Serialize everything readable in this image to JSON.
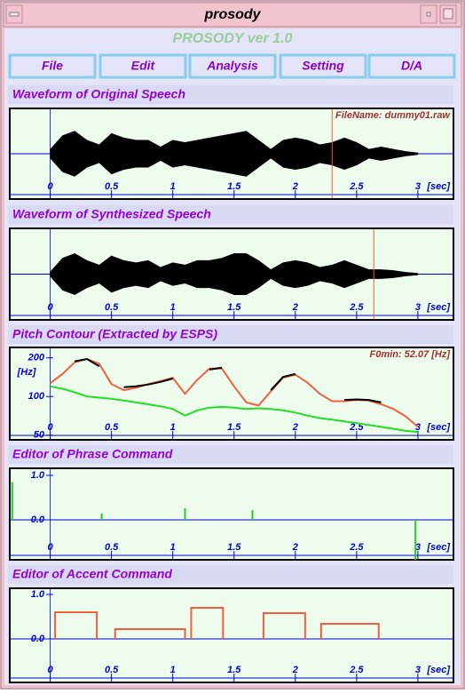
{
  "window": {
    "title": "prosody"
  },
  "app_title": "PROSODY ver 1.0",
  "menu": [
    "File",
    "Edit",
    "Analysis",
    "Setting",
    "D/A"
  ],
  "chart_data": [
    {
      "type": "waveform",
      "title": "Waveform of Original Speech",
      "file_label": "FileName: dummy01.raw",
      "xlim": [
        -0.33,
        3.29
      ],
      "xticks": [
        0,
        0.5,
        1,
        1.5,
        2,
        2.5,
        3
      ],
      "x_unit": "[sec]",
      "ylim": [
        -1,
        1
      ],
      "x": [
        0,
        0.1,
        0.2,
        0.3,
        0.4,
        0.5,
        0.6,
        0.7,
        0.8,
        0.9,
        1,
        1.1,
        1.2,
        1.3,
        1.4,
        1.5,
        1.6,
        1.7,
        1.8,
        1.9,
        2,
        2.1,
        2.2,
        2.3,
        2.4,
        2.5,
        2.6,
        2.7,
        2.8,
        2.9,
        3
      ],
      "values": [
        0.1,
        0.4,
        0.5,
        0.3,
        0.2,
        0.45,
        0.35,
        0.3,
        0.3,
        0.15,
        0.3,
        0.25,
        0.3,
        0.35,
        0.4,
        0.45,
        0.5,
        0.3,
        0.1,
        0.3,
        0.35,
        0.3,
        0.2,
        0.25,
        0.35,
        0.25,
        0.1,
        0.15,
        0.1,
        0.05,
        0.02
      ],
      "color": "#000000",
      "cursor": 2.3,
      "cursor_color": "#e06040"
    },
    {
      "type": "waveform",
      "title": "Waveform of Synthesized Speech",
      "xlim": [
        -0.33,
        3.29
      ],
      "xticks": [
        0,
        0.5,
        1,
        1.5,
        2,
        2.5,
        3
      ],
      "x_unit": "[sec]",
      "ylim": [
        -1,
        1
      ],
      "x": [
        0,
        0.1,
        0.2,
        0.3,
        0.4,
        0.5,
        0.6,
        0.7,
        0.8,
        0.9,
        1,
        1.1,
        1.2,
        1.3,
        1.4,
        1.5,
        1.6,
        1.7,
        1.8,
        1.9,
        2,
        2.1,
        2.2,
        2.3,
        2.4,
        2.5,
        2.6,
        2.7,
        2.8,
        2.9,
        3
      ],
      "values": [
        0.05,
        0.35,
        0.45,
        0.3,
        0.2,
        0.4,
        0.3,
        0.25,
        0.3,
        0.15,
        0.25,
        0.2,
        0.3,
        0.3,
        0.35,
        0.45,
        0.45,
        0.3,
        0.1,
        0.25,
        0.3,
        0.25,
        0.15,
        0.2,
        0.3,
        0.2,
        0.1,
        0.1,
        0.08,
        0.04,
        0.02
      ],
      "color": "#000000",
      "cursor": 2.64,
      "cursor_color": "#e06040"
    },
    {
      "type": "pitch",
      "title": "Pitch Contour (Extracted by ESPS)",
      "file_label": "F0min: 52.07 [Hz]",
      "xlim": [
        -0.33,
        3.29
      ],
      "xticks": [
        0,
        0.5,
        1,
        1.5,
        2,
        2.5,
        3
      ],
      "x_unit": "[sec]",
      "ylim": [
        46,
        241
      ],
      "yticks": [
        50,
        100,
        200
      ],
      "y_unit": "[Hz]",
      "log_scale": true,
      "x": [
        0,
        0.1,
        0.2,
        0.3,
        0.4,
        0.5,
        0.6,
        0.7,
        0.8,
        0.9,
        1,
        1.1,
        1.2,
        1.3,
        1.4,
        1.5,
        1.6,
        1.7,
        1.8,
        1.9,
        2,
        2.1,
        2.2,
        2.3,
        2.4,
        2.5,
        2.6,
        2.7,
        2.8,
        2.9,
        3
      ],
      "series": [
        {
          "color": "#22dd22",
          "values": [
            120,
            115,
            108,
            100,
            98,
            96,
            93,
            90,
            87,
            84,
            80,
            71,
            78,
            82,
            83,
            82,
            80,
            81,
            80,
            78,
            75,
            71,
            68,
            66,
            64,
            62,
            60,
            58,
            56,
            54,
            53
          ]
        },
        {
          "color": "#f06040",
          "values": [
            127,
            150,
            185,
            196,
            180,
            125,
            112,
            117,
            125,
            132,
            140,
            105,
            135,
            165,
            165,
            120,
            90,
            85,
            110,
            140,
            148,
            128,
            105,
            92,
            92,
            94,
            93,
            87,
            80,
            70,
            58
          ]
        },
        {
          "color": "#000000",
          "values": [
            null,
            null,
            188,
            196,
            172,
            null,
            118,
            120,
            124,
            130,
            138,
            null,
            null,
            162,
            168,
            null,
            null,
            null,
            112,
            142,
            150,
            null,
            null,
            null,
            94,
            95,
            94,
            90,
            null,
            null,
            null
          ]
        }
      ]
    },
    {
      "type": "impulse",
      "title": "Editor of Phrase Command",
      "xlim": [
        -0.33,
        3.29
      ],
      "xticks": [
        0,
        0.5,
        1,
        1.5,
        2,
        2.5,
        3
      ],
      "x_unit": "[sec]",
      "ylim": [
        -0.9,
        1.16
      ],
      "yticks": [
        {
          "value": 1,
          "label": "1.0"
        },
        {
          "value": 0,
          "label": "0.0"
        }
      ],
      "x": [
        -0.31,
        0.42,
        1.1,
        1.65,
        2.98
      ],
      "values": [
        0.85,
        0.14,
        0.26,
        0.22,
        -0.9
      ],
      "color": "#22cc22"
    },
    {
      "type": "step",
      "title": "Editor of Accent Command",
      "xlim": [
        -0.33,
        3.29
      ],
      "xticks": [
        0,
        0.5,
        1,
        1.5,
        2,
        2.5,
        3
      ],
      "x_unit": "[sec]",
      "ylim": [
        -0.98,
        1.14
      ],
      "yticks": [
        {
          "value": 1,
          "label": "1.0"
        },
        {
          "value": 0,
          "label": "0.0"
        }
      ],
      "onsets": [
        0.04,
        0.53,
        1.15,
        1.74,
        2.21
      ],
      "offsets": [
        0.38,
        1.1,
        1.41,
        2.08,
        2.68
      ],
      "values": [
        0.6,
        0.22,
        0.7,
        0.58,
        0.34
      ],
      "color": "#f06040"
    }
  ]
}
